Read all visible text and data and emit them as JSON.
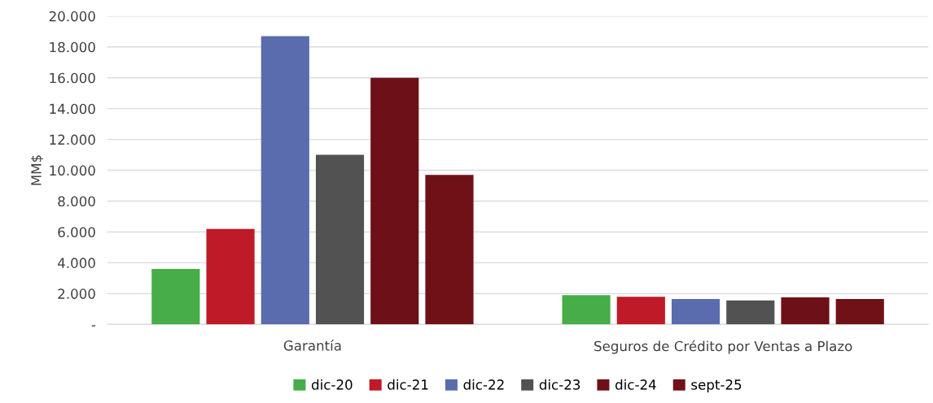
{
  "chart_data": {
    "type": "bar",
    "ylabel": "MM$",
    "categories": [
      "Garantía",
      "Seguros de Crédito por Ventas a Plazo"
    ],
    "series": [
      {
        "name": "dic-20",
        "color": "#46ad48",
        "values": [
          3600,
          1900
        ]
      },
      {
        "name": "dic-21",
        "color": "#be1a27",
        "values": [
          6200,
          1800
        ]
      },
      {
        "name": "dic-22",
        "color": "#5a6cae",
        "values": [
          18700,
          1650
        ]
      },
      {
        "name": "dic-23",
        "color": "#525252",
        "values": [
          11000,
          1550
        ]
      },
      {
        "name": "dic-24",
        "color": "#6e1017",
        "values": [
          16000,
          1750
        ]
      },
      {
        "name": "sept-25",
        "color": "#701118",
        "values": [
          9700,
          1650
        ]
      }
    ],
    "ylim": [
      0,
      20000
    ],
    "yticks": [
      {
        "value": 0,
        "label": "-"
      },
      {
        "value": 2000,
        "label": "2.000"
      },
      {
        "value": 4000,
        "label": "4.000"
      },
      {
        "value": 6000,
        "label": "6.000"
      },
      {
        "value": 8000,
        "label": "8.000"
      },
      {
        "value": 10000,
        "label": "10.000"
      },
      {
        "value": 12000,
        "label": "12.000"
      },
      {
        "value": 14000,
        "label": "14.000"
      },
      {
        "value": 16000,
        "label": "16.000"
      },
      {
        "value": 18000,
        "label": "18.000"
      },
      {
        "value": 20000,
        "label": "20.000"
      }
    ],
    "grid": "y",
    "legend": "bottom"
  }
}
